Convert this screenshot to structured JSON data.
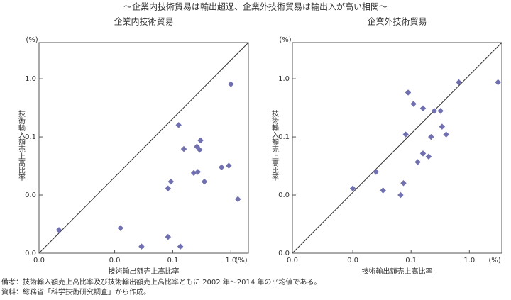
{
  "title": "～企業内技術貿易は輸出超過、企業外技術貿易は輸出入が高い相関～",
  "notes": [
    "備考：技術輸入額売上高比率及び技術輸出額売上高比率ともに 2002 年～2014 年の平均値である。",
    "資料：総務省「科学技術研究調査」から作成。"
  ],
  "chart_data": [
    {
      "type": "scatter",
      "title": "企業内技術貿易",
      "x_label": "技術輸出額売上高比率",
      "y_label": "技術輸入額売上高比率",
      "x_unit": "(%)",
      "y_unit": "(%)",
      "log_x": true,
      "log_y": true,
      "color": "#7070b0",
      "xlim": [
        0.0005,
        2
      ],
      "ylim": [
        0.001,
        4.2
      ],
      "xticks": [
        {
          "value": 0.0005,
          "label": "0.0"
        },
        {
          "value": 0.01,
          "label": "0.0"
        },
        {
          "value": 0.1,
          "label": "0.1"
        },
        {
          "value": 1,
          "label": "1.0"
        }
      ],
      "yticks": [
        {
          "value": 0.001,
          "label": "0.0"
        },
        {
          "value": 0.01,
          "label": "0.0"
        },
        {
          "value": 0.1,
          "label": "0.1"
        },
        {
          "value": 1,
          "label": "1.0"
        }
      ],
      "x": [
        0.0011,
        0.0126,
        0.029,
        0.083,
        0.135,
        0.126,
        0.155,
        0.083,
        0.093,
        0.23,
        0.27,
        0.26,
        0.3,
        0.29,
        0.35,
        0.69,
        0.92,
        1.0,
        1.32
      ],
      "values": [
        0.0025,
        0.0027,
        0.0013,
        0.0019,
        0.0013,
        0.16,
        0.062,
        0.013,
        0.017,
        0.024,
        0.025,
        0.068,
        0.087,
        0.06,
        0.017,
        0.03,
        0.032,
        0.81,
        0.0085
      ]
    },
    {
      "type": "scatter",
      "title": "企業外技術貿易",
      "x_label": "技術輸出額売上高比率",
      "y_label": "技術輸入額売上高比率",
      "x_unit": "(%)",
      "y_unit": "(%)",
      "log_x": true,
      "log_y": true,
      "color": "#7070b0",
      "xlim": [
        0.00092,
        3.6
      ],
      "ylim": [
        0.001,
        4.2
      ],
      "xticks": [
        {
          "value": 0.00092,
          "label": "0.0"
        },
        {
          "value": 0.01,
          "label": "0.0"
        },
        {
          "value": 0.1,
          "label": "0.1"
        },
        {
          "value": 1,
          "label": "1.0"
        }
      ],
      "yticks": [
        {
          "value": 0.001,
          "label": "0.0"
        },
        {
          "value": 0.01,
          "label": "0.0"
        },
        {
          "value": 0.1,
          "label": "0.1"
        },
        {
          "value": 1,
          "label": "1.0"
        }
      ],
      "x": [
        0.01,
        0.025,
        0.033,
        0.066,
        0.074,
        0.081,
        0.089,
        0.11,
        0.13,
        0.16,
        0.16,
        0.2,
        0.22,
        0.25,
        0.32,
        0.34,
        0.4,
        0.66,
        3.1
      ],
      "values": [
        0.013,
        0.025,
        0.012,
        0.01,
        0.016,
        0.11,
        0.58,
        0.37,
        0.037,
        0.052,
        0.31,
        0.046,
        0.1,
        0.28,
        0.28,
        0.15,
        0.11,
        0.87,
        0.87
      ]
    }
  ]
}
